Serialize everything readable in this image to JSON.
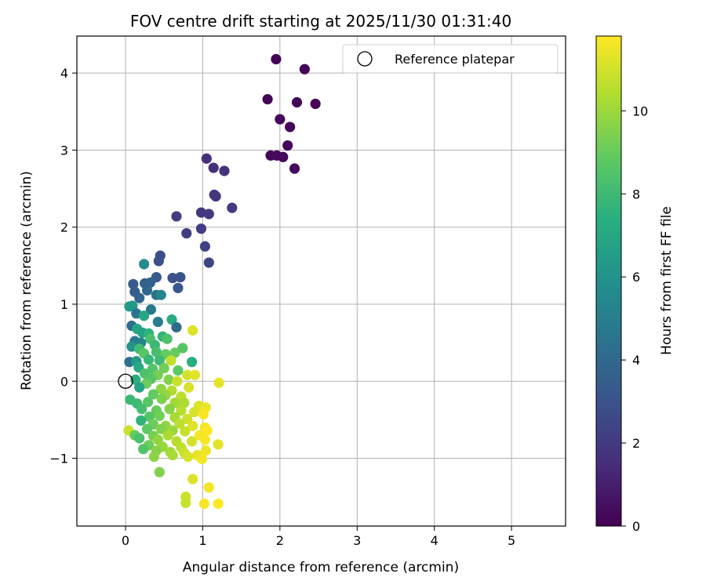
{
  "chart_data": {
    "type": "scatter",
    "title": "FOV centre drift starting at 2025/11/30 01:31:40",
    "xlabel": "Angular distance from reference (arcmin)",
    "ylabel": "Rotation from reference (arcmin)",
    "colorbar_label": "Hours from first FF file",
    "xlim": [
      -0.63,
      5.7
    ],
    "ylim": [
      -1.88,
      4.48
    ],
    "clim": [
      0,
      11.8
    ],
    "xticks": [
      "0",
      "1",
      "2",
      "3",
      "4",
      "5"
    ],
    "yticks": [
      "−1",
      "0",
      "1",
      "2",
      "3",
      "4"
    ],
    "cticks": [
      "0",
      "2",
      "4",
      "6",
      "8",
      "10"
    ],
    "grid": true,
    "legend_position": "top-right",
    "legend": [
      {
        "label": "Reference platepar",
        "marker": "open-circle"
      }
    ],
    "reference": {
      "x": 0,
      "y": 0
    },
    "points": [
      {
        "x": 1.95,
        "y": 4.18,
        "h": 0.1
      },
      {
        "x": 2.32,
        "y": 4.05,
        "h": 0.1
      },
      {
        "x": 1.84,
        "y": 3.66,
        "h": 0.1
      },
      {
        "x": 2.22,
        "y": 3.62,
        "h": 0.1
      },
      {
        "x": 2.46,
        "y": 3.6,
        "h": 0.1
      },
      {
        "x": 2.0,
        "y": 3.4,
        "h": 0.2
      },
      {
        "x": 2.13,
        "y": 3.3,
        "h": 0.2
      },
      {
        "x": 2.1,
        "y": 3.06,
        "h": 0.2
      },
      {
        "x": 1.88,
        "y": 2.93,
        "h": 0.2
      },
      {
        "x": 1.96,
        "y": 2.93,
        "h": 0.3
      },
      {
        "x": 2.04,
        "y": 2.91,
        "h": 0.3
      },
      {
        "x": 2.19,
        "y": 2.76,
        "h": 0.3
      },
      {
        "x": 1.05,
        "y": 2.89,
        "h": 1.6
      },
      {
        "x": 1.14,
        "y": 2.77,
        "h": 1.6
      },
      {
        "x": 1.28,
        "y": 2.73,
        "h": 1.7
      },
      {
        "x": 1.15,
        "y": 2.42,
        "h": 1.8
      },
      {
        "x": 1.17,
        "y": 2.4,
        "h": 1.8
      },
      {
        "x": 1.38,
        "y": 2.25,
        "h": 1.9
      },
      {
        "x": 0.98,
        "y": 2.19,
        "h": 1.9
      },
      {
        "x": 1.08,
        "y": 2.17,
        "h": 2.0
      },
      {
        "x": 0.66,
        "y": 2.14,
        "h": 2.1
      },
      {
        "x": 0.98,
        "y": 1.98,
        "h": 2.1
      },
      {
        "x": 0.79,
        "y": 1.92,
        "h": 2.2
      },
      {
        "x": 1.03,
        "y": 1.75,
        "h": 2.3
      },
      {
        "x": 1.08,
        "y": 1.54,
        "h": 2.4
      },
      {
        "x": 0.45,
        "y": 1.63,
        "h": 2.8
      },
      {
        "x": 0.43,
        "y": 1.56,
        "h": 2.9
      },
      {
        "x": 0.24,
        "y": 1.52,
        "h": 5.6
      },
      {
        "x": 0.61,
        "y": 1.34,
        "h": 3.0
      },
      {
        "x": 0.71,
        "y": 1.35,
        "h": 3.0
      },
      {
        "x": 0.68,
        "y": 1.21,
        "h": 3.2
      },
      {
        "x": 0.4,
        "y": 1.35,
        "h": 3.3
      },
      {
        "x": 0.1,
        "y": 1.26,
        "h": 3.4
      },
      {
        "x": 0.25,
        "y": 1.27,
        "h": 3.6
      },
      {
        "x": 0.32,
        "y": 1.28,
        "h": 3.7
      },
      {
        "x": 0.12,
        "y": 1.16,
        "h": 3.5
      },
      {
        "x": 0.28,
        "y": 1.18,
        "h": 3.9
      },
      {
        "x": 0.4,
        "y": 1.12,
        "h": 4.3
      },
      {
        "x": 0.46,
        "y": 1.12,
        "h": 5.4
      },
      {
        "x": 0.18,
        "y": 1.08,
        "h": 3.8
      },
      {
        "x": 0.05,
        "y": 0.97,
        "h": 6.6
      },
      {
        "x": 0.09,
        "y": 0.98,
        "h": 6.2
      },
      {
        "x": 0.14,
        "y": 0.88,
        "h": 4.5
      },
      {
        "x": 0.33,
        "y": 0.93,
        "h": 4.8
      },
      {
        "x": 0.24,
        "y": 0.85,
        "h": 7.0
      },
      {
        "x": 0.42,
        "y": 0.77,
        "h": 4.9
      },
      {
        "x": 0.6,
        "y": 0.8,
        "h": 7.2
      },
      {
        "x": 0.66,
        "y": 0.7,
        "h": 4.1
      },
      {
        "x": 0.08,
        "y": 0.72,
        "h": 4.2
      },
      {
        "x": 0.15,
        "y": 0.68,
        "h": 6.9
      },
      {
        "x": 0.22,
        "y": 0.63,
        "h": 6.7
      },
      {
        "x": 0.3,
        "y": 0.62,
        "h": 7.5
      },
      {
        "x": 0.48,
        "y": 0.58,
        "h": 7.7
      },
      {
        "x": 0.32,
        "y": 0.55,
        "h": 8.3
      },
      {
        "x": 0.54,
        "y": 0.55,
        "h": 8.4
      },
      {
        "x": 0.87,
        "y": 0.66,
        "h": 11.2
      },
      {
        "x": 0.12,
        "y": 0.52,
        "h": 4.6
      },
      {
        "x": 0.2,
        "y": 0.5,
        "h": 5.2
      },
      {
        "x": 0.38,
        "y": 0.47,
        "h": 7.9
      },
      {
        "x": 0.08,
        "y": 0.45,
        "h": 6.0
      },
      {
        "x": 0.18,
        "y": 0.42,
        "h": 8.1
      },
      {
        "x": 0.74,
        "y": 0.43,
        "h": 8.6
      },
      {
        "x": 0.24,
        "y": 0.36,
        "h": 8.7
      },
      {
        "x": 0.4,
        "y": 0.38,
        "h": 8.2
      },
      {
        "x": 0.52,
        "y": 0.35,
        "h": 8.9
      },
      {
        "x": 0.64,
        "y": 0.37,
        "h": 9.0
      },
      {
        "x": 0.05,
        "y": 0.25,
        "h": 4.4
      },
      {
        "x": 0.14,
        "y": 0.26,
        "h": 6.4
      },
      {
        "x": 0.3,
        "y": 0.28,
        "h": 7.8
      },
      {
        "x": 0.44,
        "y": 0.27,
        "h": 8.0
      },
      {
        "x": 0.59,
        "y": 0.27,
        "h": 10.7
      },
      {
        "x": 0.86,
        "y": 0.25,
        "h": 7.3
      },
      {
        "x": 0.17,
        "y": 0.18,
        "h": 7.1
      },
      {
        "x": 0.35,
        "y": 0.16,
        "h": 8.5
      },
      {
        "x": 0.5,
        "y": 0.17,
        "h": 9.2
      },
      {
        "x": 0.68,
        "y": 0.14,
        "h": 8.8
      },
      {
        "x": 0.25,
        "y": 0.1,
        "h": 8.4
      },
      {
        "x": 0.42,
        "y": 0.08,
        "h": 9.3
      },
      {
        "x": 0.8,
        "y": 0.08,
        "h": 11.0
      },
      {
        "x": 0.9,
        "y": 0.08,
        "h": 11.3
      },
      {
        "x": 0.13,
        "y": 0.02,
        "h": 7.4
      },
      {
        "x": 0.33,
        "y": 0.03,
        "h": 8.6
      },
      {
        "x": 0.56,
        "y": 0.02,
        "h": 9.5
      },
      {
        "x": 0.67,
        "y": 0.0,
        "h": 10.8
      },
      {
        "x": 1.21,
        "y": -0.02,
        "h": 11.4
      },
      {
        "x": 0.27,
        "y": -0.03,
        "h": 9.1
      },
      {
        "x": 0.82,
        "y": -0.08,
        "h": 11.1
      },
      {
        "x": 0.18,
        "y": -0.08,
        "h": 6.8
      },
      {
        "x": 0.46,
        "y": -0.1,
        "h": 9.7
      },
      {
        "x": 0.6,
        "y": -0.12,
        "h": 10.4
      },
      {
        "x": 0.36,
        "y": -0.17,
        "h": 8.9
      },
      {
        "x": 0.52,
        "y": -0.18,
        "h": 9.9
      },
      {
        "x": 0.72,
        "y": -0.2,
        "h": 10.6
      },
      {
        "x": 0.06,
        "y": -0.24,
        "h": 7.9
      },
      {
        "x": 0.15,
        "y": -0.29,
        "h": 8.0
      },
      {
        "x": 0.29,
        "y": -0.27,
        "h": 8.7
      },
      {
        "x": 0.47,
        "y": -0.23,
        "h": 9.4
      },
      {
        "x": 0.64,
        "y": -0.28,
        "h": 10.1
      },
      {
        "x": 0.76,
        "y": -0.28,
        "h": 10.3
      },
      {
        "x": 0.95,
        "y": -0.32,
        "h": 11.2
      },
      {
        "x": 1.04,
        "y": -0.34,
        "h": 11.5
      },
      {
        "x": 0.21,
        "y": -0.36,
        "h": 8.2
      },
      {
        "x": 0.4,
        "y": -0.38,
        "h": 9.0
      },
      {
        "x": 0.57,
        "y": -0.36,
        "h": 9.6
      },
      {
        "x": 0.72,
        "y": -0.38,
        "h": 10.5
      },
      {
        "x": 0.89,
        "y": -0.4,
        "h": 11.1
      },
      {
        "x": 1.01,
        "y": -0.43,
        "h": 11.7
      },
      {
        "x": 0.31,
        "y": -0.46,
        "h": 8.6
      },
      {
        "x": 0.44,
        "y": -0.45,
        "h": 9.2
      },
      {
        "x": 0.64,
        "y": -0.47,
        "h": 10.2
      },
      {
        "x": 0.8,
        "y": -0.49,
        "h": 10.9
      },
      {
        "x": 0.2,
        "y": -0.51,
        "h": 7.6
      },
      {
        "x": 0.36,
        "y": -0.56,
        "h": 9.1
      },
      {
        "x": 0.52,
        "y": -0.58,
        "h": 9.8
      },
      {
        "x": 0.7,
        "y": -0.55,
        "h": 10.6
      },
      {
        "x": 0.87,
        "y": -0.58,
        "h": 11.2
      },
      {
        "x": 1.03,
        "y": -0.6,
        "h": 11.6
      },
      {
        "x": 0.04,
        "y": -0.64,
        "h": 10.9
      },
      {
        "x": 0.28,
        "y": -0.62,
        "h": 8.8
      },
      {
        "x": 0.46,
        "y": -0.62,
        "h": 9.5
      },
      {
        "x": 0.61,
        "y": -0.64,
        "h": 10.0
      },
      {
        "x": 0.77,
        "y": -0.65,
        "h": 10.8
      },
      {
        "x": 1.06,
        "y": -0.64,
        "h": 11.8
      },
      {
        "x": 0.12,
        "y": -0.7,
        "h": 9.0
      },
      {
        "x": 0.36,
        "y": -0.71,
        "h": 9.3
      },
      {
        "x": 0.55,
        "y": -0.7,
        "h": 10.3
      },
      {
        "x": 0.96,
        "y": -0.7,
        "h": 11.6
      },
      {
        "x": 0.18,
        "y": -0.74,
        "h": 8.3
      },
      {
        "x": 0.42,
        "y": -0.76,
        "h": 9.8
      },
      {
        "x": 0.66,
        "y": -0.78,
        "h": 10.5
      },
      {
        "x": 0.86,
        "y": -0.78,
        "h": 11.0
      },
      {
        "x": 1.03,
        "y": -0.76,
        "h": 11.7
      },
      {
        "x": 1.2,
        "y": -0.82,
        "h": 11.3
      },
      {
        "x": 0.3,
        "y": -0.83,
        "h": 9.1
      },
      {
        "x": 0.48,
        "y": -0.85,
        "h": 9.9
      },
      {
        "x": 0.72,
        "y": -0.86,
        "h": 10.6
      },
      {
        "x": 0.23,
        "y": -0.88,
        "h": 8.5
      },
      {
        "x": 0.4,
        "y": -0.9,
        "h": 9.6
      },
      {
        "x": 0.58,
        "y": -0.92,
        "h": 10.1
      },
      {
        "x": 0.76,
        "y": -0.93,
        "h": 10.9
      },
      {
        "x": 0.93,
        "y": -0.96,
        "h": 11.4
      },
      {
        "x": 1.04,
        "y": -0.9,
        "h": 11.5
      },
      {
        "x": 0.37,
        "y": -0.98,
        "h": 9.7
      },
      {
        "x": 0.61,
        "y": -0.96,
        "h": 10.2
      },
      {
        "x": 0.81,
        "y": -0.98,
        "h": 11.1
      },
      {
        "x": 0.99,
        "y": -1.01,
        "h": 11.6
      },
      {
        "x": 0.44,
        "y": -1.18,
        "h": 9.5
      },
      {
        "x": 0.87,
        "y": -1.27,
        "h": 11.2
      },
      {
        "x": 1.08,
        "y": -1.38,
        "h": 11.6
      },
      {
        "x": 0.78,
        "y": -1.5,
        "h": 10.9
      },
      {
        "x": 0.78,
        "y": -1.58,
        "h": 10.8
      },
      {
        "x": 1.02,
        "y": -1.59,
        "h": 11.7
      },
      {
        "x": 1.2,
        "y": -1.59,
        "h": 11.8
      }
    ]
  }
}
